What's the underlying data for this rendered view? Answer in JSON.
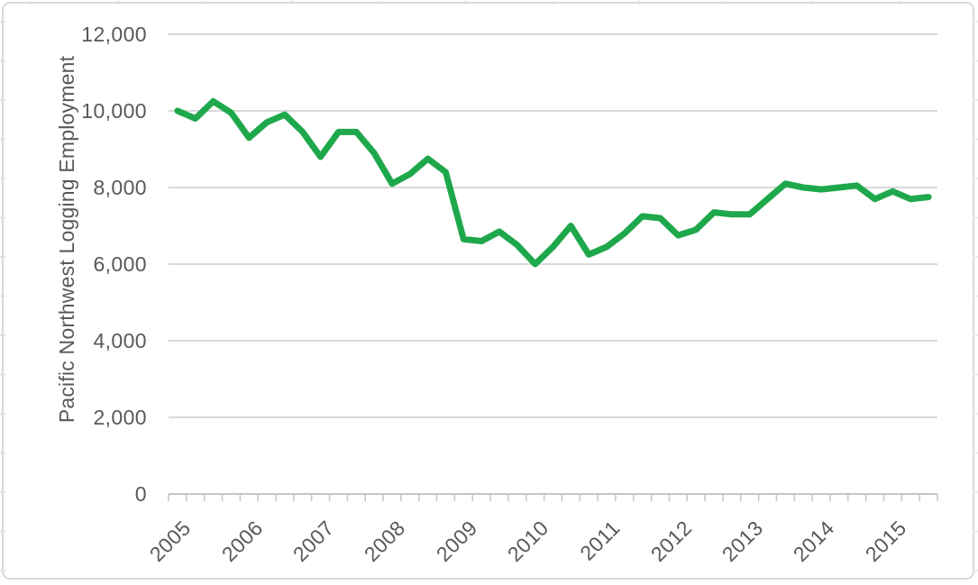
{
  "chart_data": {
    "type": "line",
    "title": "",
    "ylabel": "Pacific Northwest Logging Employment",
    "xlabel": "",
    "ylim": [
      0,
      12000
    ],
    "y_tick_step": 2000,
    "grid": "horizontal-major",
    "legend": "none",
    "y_tick_labels": [
      "12,000",
      "10,000",
      "8,000",
      "6,000",
      "4,000",
      "2,000",
      "0"
    ],
    "year_labels": [
      "2005",
      "2006",
      "2007",
      "2008",
      "2009",
      "2010",
      "2011",
      "2012",
      "2013",
      "2014",
      "2015"
    ],
    "x": [
      "2005 Q1",
      "2005 Q2",
      "2005 Q3",
      "2005 Q4",
      "2006 Q1",
      "2006 Q2",
      "2006 Q3",
      "2006 Q4",
      "2007 Q1",
      "2007 Q2",
      "2007 Q3",
      "2007 Q4",
      "2008 Q1",
      "2008 Q2",
      "2008 Q3",
      "2008 Q4",
      "2009 Q1",
      "2009 Q2",
      "2009 Q3",
      "2009 Q4",
      "2010 Q1",
      "2010 Q2",
      "2010 Q3",
      "2010 Q4",
      "2011 Q1",
      "2011 Q2",
      "2011 Q3",
      "2011 Q4",
      "2012 Q1",
      "2012 Q2",
      "2012 Q3",
      "2012 Q4",
      "2013 Q1",
      "2013 Q2",
      "2013 Q3",
      "2013 Q4",
      "2014 Q1",
      "2014 Q2",
      "2014 Q3",
      "2014 Q4",
      "2015 Q1",
      "2015 Q2",
      "2015 Q3"
    ],
    "values": [
      10000,
      9800,
      10250,
      9950,
      9300,
      9700,
      9900,
      9450,
      8800,
      9450,
      9450,
      8900,
      8100,
      8350,
      8750,
      8400,
      6650,
      6600,
      6850,
      6500,
      6000,
      6450,
      7000,
      6250,
      6450,
      6800,
      7250,
      7200,
      6750,
      6900,
      7350,
      7300,
      7300,
      7700,
      8100,
      8000,
      7950,
      8000,
      8050,
      7700,
      7900,
      7700,
      7750
    ],
    "colors": {
      "series": "#1EA84B",
      "axis_text": "#595959",
      "gridline": "#D9D9D9",
      "axis_line": "#C6C6C6",
      "frame_border": "#D9D9D9"
    }
  }
}
